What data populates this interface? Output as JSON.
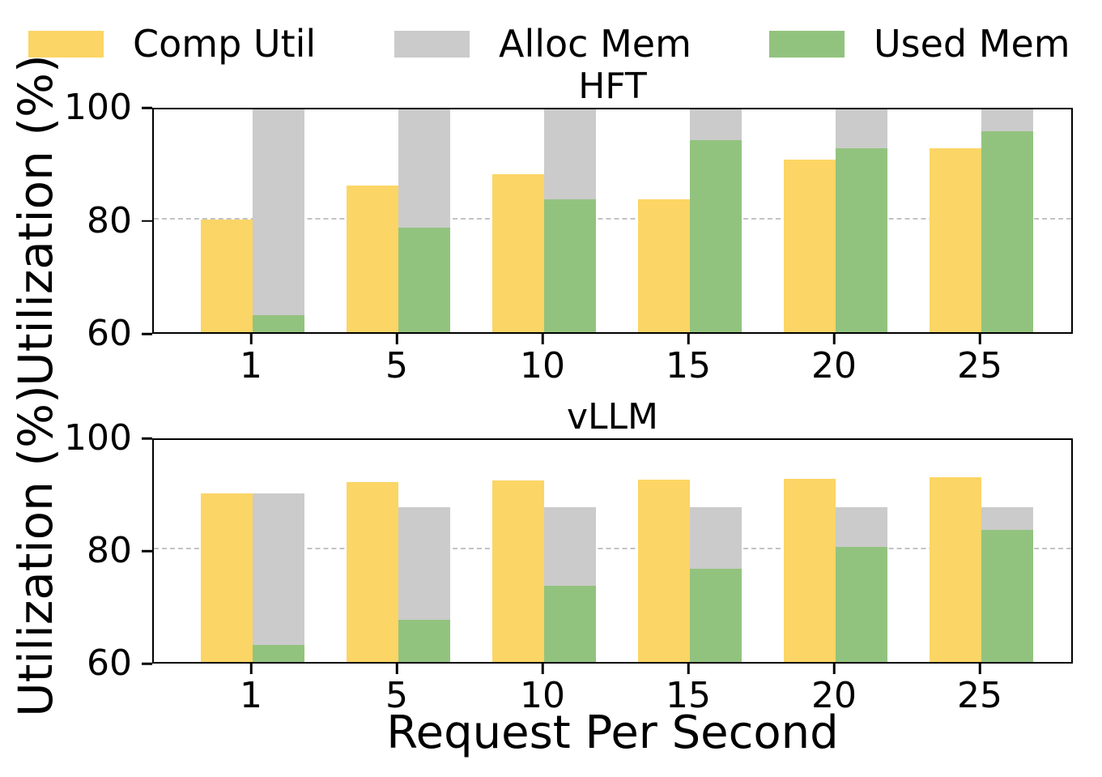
{
  "legend": {
    "items": [
      {
        "label": "Comp Util",
        "color": "#FBD565"
      },
      {
        "label": "Alloc Mem",
        "color": "#CBCBCB"
      },
      {
        "label": "Used Mem",
        "color": "#92C37E"
      }
    ]
  },
  "axes": {
    "ylabel": "Utilization (%)",
    "xlabel": "Request Per Second",
    "grid_color": "#c3c3c3"
  },
  "chart_data": [
    {
      "type": "bar",
      "title": "HFT",
      "ylabel": "Utilization (%)",
      "categories": [
        "1",
        "5",
        "10",
        "15",
        "20",
        "25"
      ],
      "series": [
        {
          "name": "Comp Util",
          "color": "#FBD565",
          "values": [
            80,
            86,
            88,
            83.5,
            90.5,
            92.5
          ]
        },
        {
          "name": "Alloc Mem",
          "color": "#CBCBCB",
          "values": [
            100,
            100,
            100,
            100,
            100,
            100
          ]
        },
        {
          "name": "Used Mem",
          "color": "#92C37E",
          "values": [
            63,
            78.5,
            83.5,
            94,
            92.5,
            95.5
          ]
        }
      ],
      "ylim": [
        60,
        100
      ],
      "yticks": [
        100,
        80,
        60
      ],
      "grid_y": 80,
      "legend_position": "top",
      "grid": "dashed-horizontal-at-80"
    },
    {
      "type": "bar",
      "title": "vLLM",
      "ylabel": "Utilization (%)",
      "xlabel": "Request Per Second",
      "categories": [
        "1",
        "5",
        "10",
        "15",
        "20",
        "25"
      ],
      "series": [
        {
          "name": "Comp Util",
          "color": "#FBD565",
          "values": [
            90,
            92,
            92.3,
            92.4,
            92.5,
            92.8
          ]
        },
        {
          "name": "Alloc Mem",
          "color": "#CBCBCB",
          "values": [
            90,
            87.5,
            87.5,
            87.5,
            87.5,
            87.5
          ]
        },
        {
          "name": "Used Mem",
          "color": "#92C37E",
          "values": [
            63,
            67.5,
            73.5,
            76.5,
            80.5,
            83.5
          ]
        }
      ],
      "ylim": [
        60,
        100
      ],
      "yticks": [
        100,
        80,
        60
      ],
      "grid_y": 80,
      "grid": "dashed-horizontal-at-80"
    }
  ]
}
